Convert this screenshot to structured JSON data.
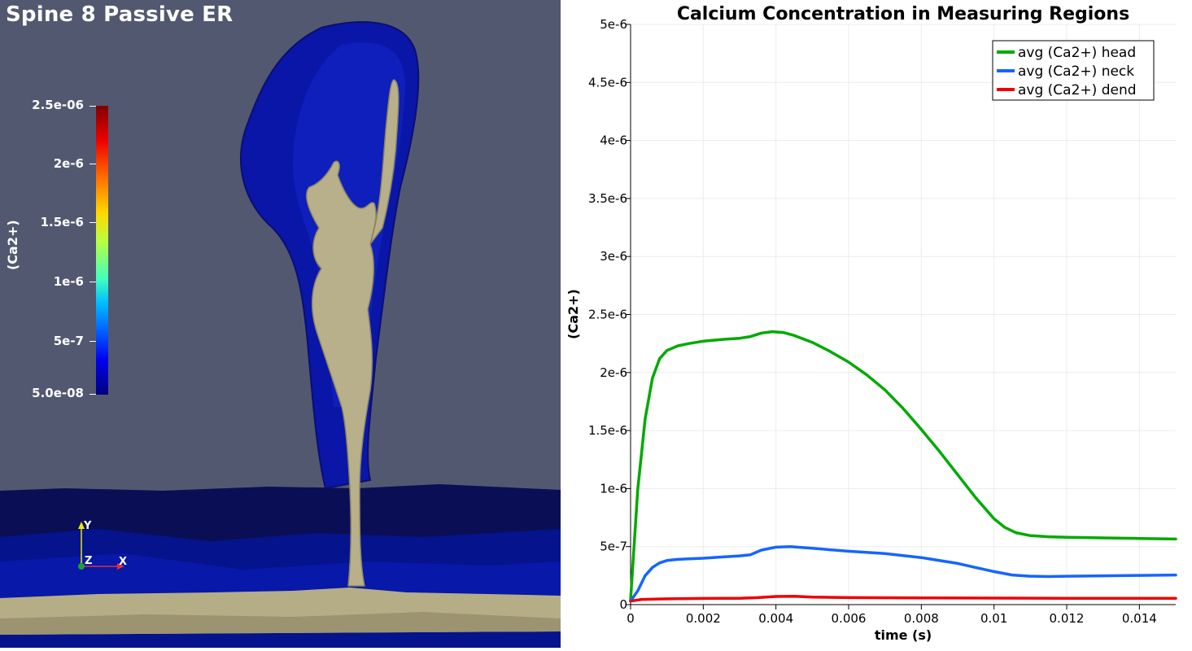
{
  "viewport": {
    "title": "Spine 8 Passive ER",
    "colorbar": {
      "title": "(Ca2+)",
      "labels": [
        "2.5e-06",
        "2e-6",
        "1.5e-6",
        "1e-6",
        "5e-7",
        "5.0e-08"
      ]
    },
    "axes": {
      "y": "Y",
      "z": "Z",
      "x": "X"
    }
  },
  "chart_data": {
    "type": "line",
    "title": "Calcium Concentration in Measuring Regions",
    "xlabel": "time (s)",
    "ylabel": "(Ca2+)",
    "xlim": [
      0,
      0.015
    ],
    "ylim": [
      0,
      5e-06
    ],
    "xticks": [
      0,
      0.002,
      0.004,
      0.006,
      0.008,
      0.01,
      0.012,
      0.014
    ],
    "xtick_labels": [
      "0",
      "0.002",
      "0.004",
      "0.006",
      "0.008",
      "0.01",
      "0.012",
      "0.014"
    ],
    "yticks": [
      0,
      5e-07,
      1e-06,
      1.5e-06,
      2e-06,
      2.5e-06,
      3e-06,
      3.5e-06,
      4e-06,
      4.5e-06,
      5e-06
    ],
    "ytick_labels": [
      "0",
      "5e-7",
      "1e-6",
      "1.5e-6",
      "2e-6",
      "2.5e-6",
      "3e-6",
      "3.5e-6",
      "4e-6",
      "4.5e-6",
      "5e-6"
    ],
    "grid": true,
    "legend_position": "top-right",
    "series": [
      {
        "name": "avg (Ca2+) head",
        "color": "#00aa00",
        "x": [
          0,
          0.0002,
          0.0004,
          0.0006,
          0.0008,
          0.001,
          0.0013,
          0.0016,
          0.002,
          0.0025,
          0.003,
          0.0033,
          0.0036,
          0.0039,
          0.0042,
          0.0045,
          0.005,
          0.0055,
          0.006,
          0.0065,
          0.007,
          0.0075,
          0.008,
          0.0085,
          0.009,
          0.0095,
          0.01,
          0.0103,
          0.0106,
          0.011,
          0.0115,
          0.012,
          0.013,
          0.014,
          0.015
        ],
        "y": [
          4e-08,
          1e-06,
          1.6e-06,
          1.95e-06,
          2.12e-06,
          2.19e-06,
          2.23e-06,
          2.25e-06,
          2.27e-06,
          2.285e-06,
          2.295e-06,
          2.31e-06,
          2.34e-06,
          2.352e-06,
          2.345e-06,
          2.32e-06,
          2.26e-06,
          2.18e-06,
          2.09e-06,
          1.98e-06,
          1.85e-06,
          1.69e-06,
          1.51e-06,
          1.32e-06,
          1.12e-06,
          9.2e-07,
          7.4e-07,
          6.65e-07,
          6.2e-07,
          5.95e-07,
          5.85e-07,
          5.8e-07,
          5.75e-07,
          5.7e-07,
          5.65e-07
        ]
      },
      {
        "name": "avg (Ca2+) neck",
        "color": "#1565ff",
        "x": [
          0,
          0.0002,
          0.0004,
          0.0006,
          0.0008,
          0.001,
          0.0013,
          0.0016,
          0.002,
          0.0025,
          0.003,
          0.0033,
          0.0036,
          0.004,
          0.0044,
          0.005,
          0.006,
          0.007,
          0.008,
          0.009,
          0.0095,
          0.01,
          0.0105,
          0.011,
          0.0115,
          0.012,
          0.013,
          0.014,
          0.015
        ],
        "y": [
          3e-08,
          1.2e-07,
          2.5e-07,
          3.2e-07,
          3.6e-07,
          3.8e-07,
          3.9e-07,
          3.95e-07,
          4e-07,
          4.1e-07,
          4.2e-07,
          4.3e-07,
          4.7e-07,
          4.95e-07,
          5e-07,
          4.85e-07,
          4.6e-07,
          4.4e-07,
          4.05e-07,
          3.55e-07,
          3.2e-07,
          2.85e-07,
          2.55e-07,
          2.45e-07,
          2.42e-07,
          2.45e-07,
          2.48e-07,
          2.52e-07,
          2.55e-07
        ]
      },
      {
        "name": "avg (Ca2+) dend",
        "color": "#ee0000",
        "x": [
          0,
          0.0003,
          0.001,
          0.002,
          0.003,
          0.0035,
          0.004,
          0.0045,
          0.005,
          0.006,
          0.008,
          0.01,
          0.012,
          0.014,
          0.015
        ],
        "y": [
          3e-08,
          4.5e-08,
          5e-08,
          5.3e-08,
          5.5e-08,
          6e-08,
          7e-08,
          7.2e-08,
          6.5e-08,
          6e-08,
          5.8e-08,
          5.6e-08,
          5.5e-08,
          5.5e-08,
          5.5e-08
        ]
      }
    ]
  }
}
